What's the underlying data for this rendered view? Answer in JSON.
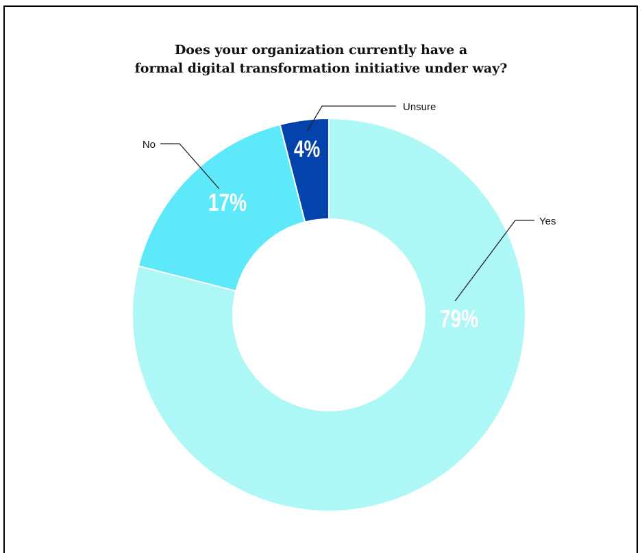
{
  "chart_data": {
    "type": "pie",
    "title": "Does your organization currently have a formal digital transformation initiative under way?",
    "title_lines": [
      "Does your organization currently have a",
      "formal digital transformation initiative under way?"
    ],
    "slices": [
      {
        "label": "Yes",
        "value": 79,
        "display": "79%",
        "color": "#adf7f6",
        "label_color": "#ffffff"
      },
      {
        "label": "No",
        "value": 17,
        "display": "17%",
        "color": "#5ee9fb",
        "label_color": "#ffffff"
      },
      {
        "label": "Unsure",
        "value": 4,
        "display": "4%",
        "color": "#0443ab",
        "label_color": "#ffffff"
      }
    ],
    "hole": "donut",
    "legend": "none"
  }
}
